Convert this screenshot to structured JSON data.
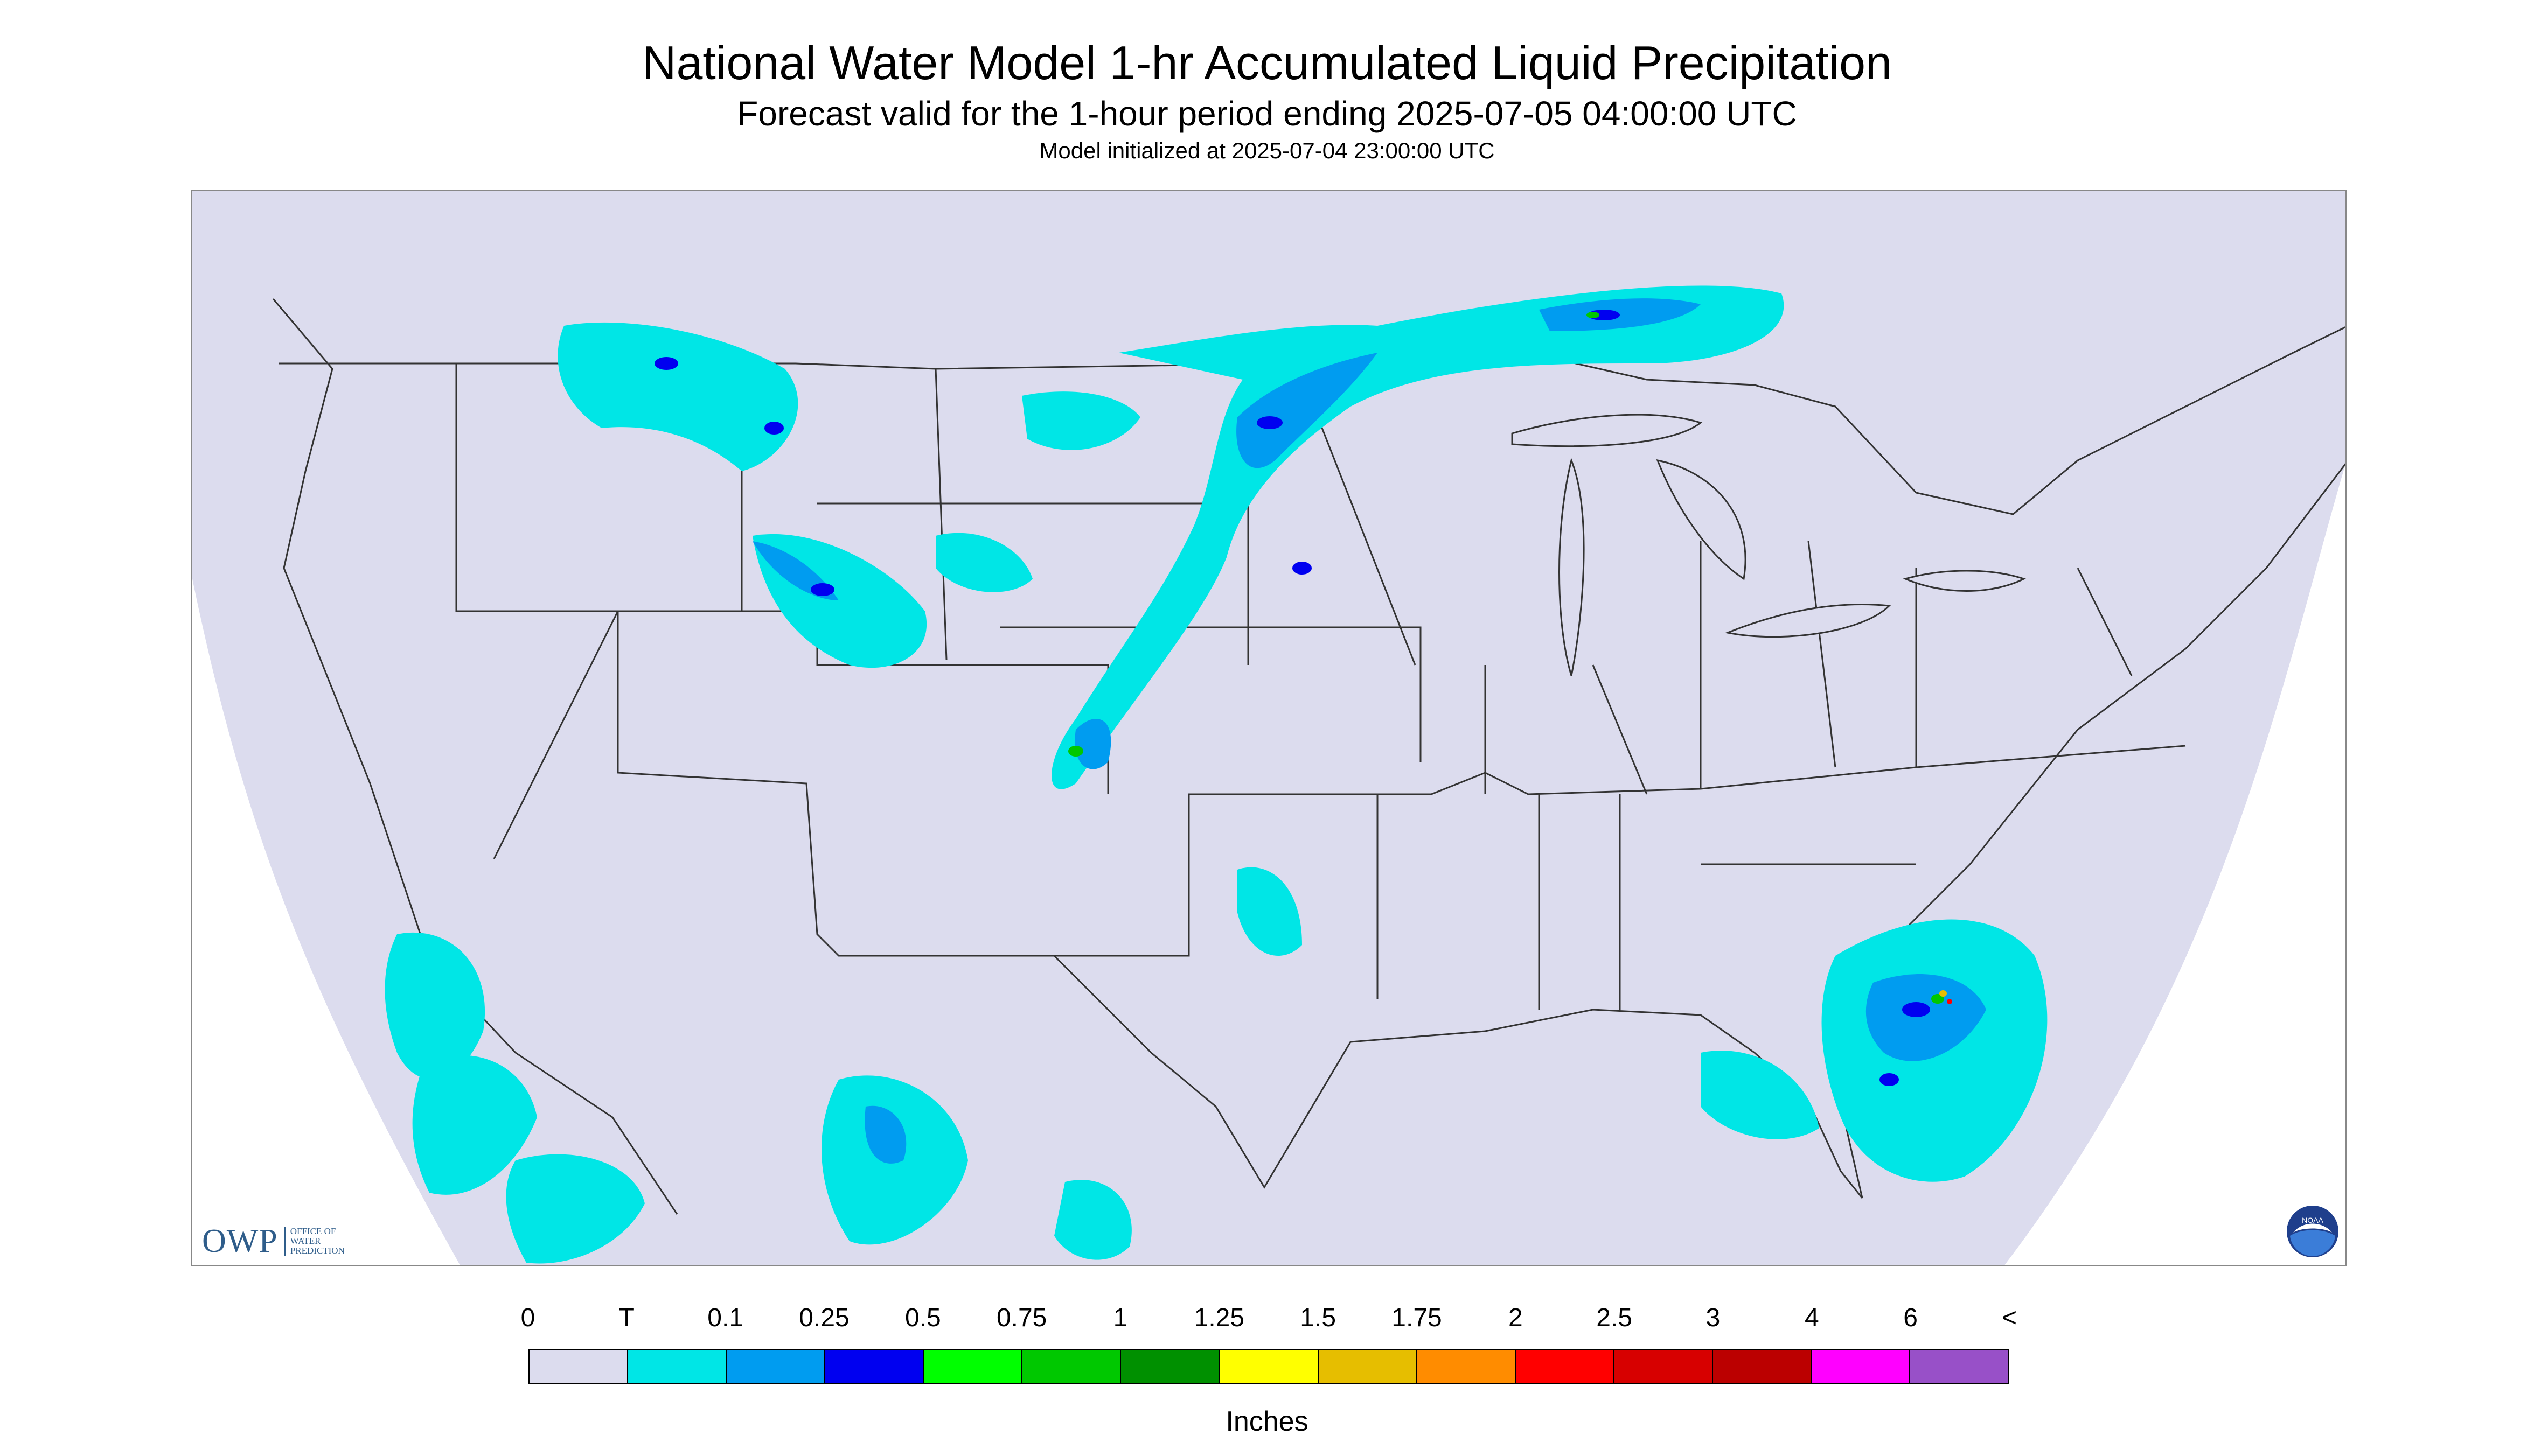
{
  "header": {
    "title": "National Water Model 1-hr Accumulated Liquid Precipitation",
    "subtitle": "Forecast valid for the 1-hour period ending 2025-07-05 04:00:00 UTC",
    "init": "Model initialized at 2025-07-04 23:00:00 UTC"
  },
  "logos": {
    "owp_mark": "OWP",
    "owp_text": "OFFICE OF WATER PREDICTION",
    "noaa_text": "NOAA"
  },
  "colors": {
    "background": "#dcdcee",
    "outside": "#ffffff",
    "borders": "#333333"
  },
  "legend": {
    "labels": [
      "0",
      "T",
      "0.1",
      "0.25",
      "0.5",
      "0.75",
      "1",
      "1.25",
      "1.5",
      "1.75",
      "2",
      "2.5",
      "3",
      "4",
      "6",
      "<"
    ],
    "colors": [
      "#dcdcee",
      "#00e6e6",
      "#009cf0",
      "#0000f0",
      "#00ff00",
      "#00c800",
      "#009000",
      "#ffff00",
      "#e6be00",
      "#ff8c00",
      "#ff0000",
      "#d70000",
      "#bb0000",
      "#ff00ff",
      "#9850c8"
    ],
    "units": "Inches"
  }
}
